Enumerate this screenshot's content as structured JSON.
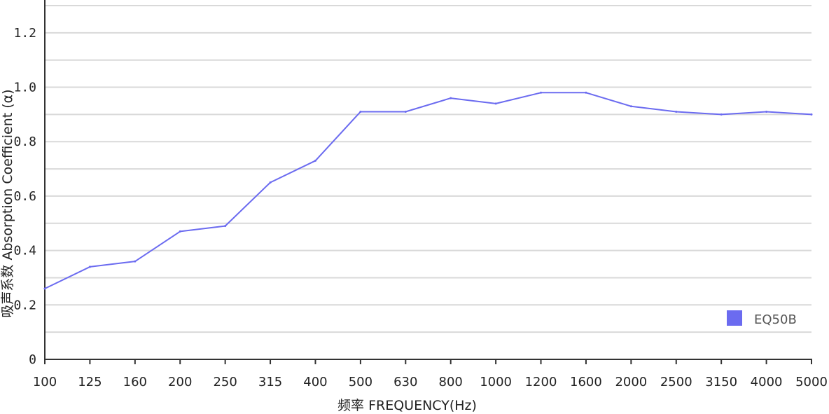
{
  "chart_data": {
    "type": "line",
    "title": "",
    "xlabel": "频率  FREQUENCY(Hz)",
    "ylabel": "吸声系数 Absorption Coefficient (α)",
    "categories": [
      "100",
      "125",
      "160",
      "200",
      "250",
      "315",
      "400",
      "500",
      "630",
      "800",
      "1000",
      "1200",
      "1600",
      "2000",
      "2500",
      "3150",
      "4000",
      "5000"
    ],
    "y_ticks": [
      {
        "value": 0,
        "label": "0"
      },
      {
        "value": 0.2,
        "label": "0.2"
      },
      {
        "value": 0.4,
        "label": "0.4"
      },
      {
        "value": 0.6,
        "label": "0.6"
      },
      {
        "value": 0.8,
        "label": "0.8"
      },
      {
        "value": 1.0,
        "label": "1.0"
      },
      {
        "value": 1.2,
        "label": "1.2"
      }
    ],
    "ylim": [
      0,
      1.3
    ],
    "grid_step": 0.1,
    "grid": true,
    "legend_position": "bottom-right",
    "series": [
      {
        "name": "EQ50B",
        "color": "#6b6bf0",
        "values": [
          0.26,
          0.34,
          0.36,
          0.47,
          0.49,
          0.65,
          0.73,
          0.91,
          0.91,
          0.96,
          0.94,
          0.98,
          0.98,
          0.93,
          0.91,
          0.9,
          0.91,
          0.9
        ]
      }
    ]
  }
}
